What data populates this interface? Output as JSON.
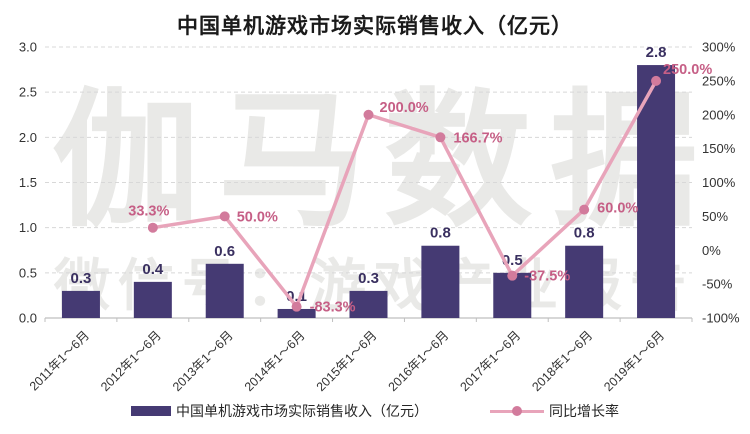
{
  "title": "中国单机游戏市场实际销售收入（亿元）",
  "watermark": {
    "line1": "伽马数据",
    "line2": "微信号：游戏产业报告"
  },
  "legend": {
    "bar_label": "中国单机游戏市场实际销售收入（亿元）",
    "line_label": "同比增长率"
  },
  "colors": {
    "bar": "#453a73",
    "bar_label": "#3a3060",
    "line": "#e8a4ba",
    "marker": "#d27b9c",
    "line_label": "#c65f86",
    "grid": "#d8d8d8",
    "axis_line": "#bfbfbf",
    "axis_text": "#333333",
    "title": "#1a1a1a",
    "watermark": "#e9e9e7",
    "background": "#ffffff"
  },
  "chart_data": {
    "type": "bar+line",
    "title": "中国单机游戏市场实际销售收入（亿元）",
    "categories": [
      "2011年1～6月",
      "2012年1～6月",
      "2013年1～6月",
      "2014年1～6月",
      "2015年1～6月",
      "2016年1～6月",
      "2017年1～6月",
      "2018年1～6月",
      "2019年1～6月"
    ],
    "series": [
      {
        "name": "中国单机游戏市场实际销售收入（亿元）",
        "type": "bar",
        "axis": "left",
        "values": [
          0.3,
          0.4,
          0.6,
          0.1,
          0.3,
          0.8,
          0.5,
          0.8,
          2.8
        ],
        "labels": [
          "0.3",
          "0.4",
          "0.6",
          "0.1",
          "0.3",
          "0.8",
          "0.5",
          "0.8",
          "2.8"
        ]
      },
      {
        "name": "同比增长率",
        "type": "line",
        "axis": "right",
        "values": [
          null,
          33.3,
          50.0,
          -83.3,
          200.0,
          166.7,
          -37.5,
          60.0,
          250.0
        ],
        "labels": [
          null,
          "33.3%",
          "50.0%",
          "-83.3%",
          "200.0%",
          "166.7%",
          "-37.5%",
          "60.0%",
          "250.0%"
        ]
      }
    ],
    "left_axis": {
      "min": 0,
      "max": 3,
      "step": 0.5,
      "ticks": [
        "0.0",
        "0.5",
        "1.0",
        "1.5",
        "2.0",
        "2.5",
        "3.0"
      ]
    },
    "right_axis": {
      "min": -100,
      "max": 300,
      "step": 50,
      "ticks": [
        "-100%",
        "-50%",
        "0%",
        "50%",
        "100%",
        "150%",
        "200%",
        "250%",
        "300%"
      ]
    },
    "grid": "dashed-horizontal",
    "legend_position": "bottom"
  }
}
